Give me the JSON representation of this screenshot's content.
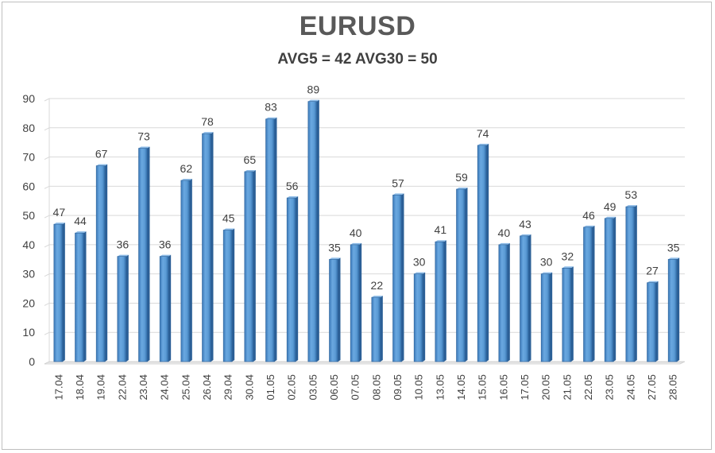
{
  "chart_data": {
    "type": "bar",
    "title": "EURUSD",
    "subtitle": "AVG5 = 42 AVG30 = 50",
    "categories": [
      "17.04",
      "18.04",
      "19.04",
      "22.04",
      "23.04",
      "24.04",
      "25.04",
      "26.04",
      "29.04",
      "30.04",
      "01.05",
      "02.05",
      "03.05",
      "06.05",
      "07.05",
      "08.05",
      "09.05",
      "10.05",
      "13.05",
      "14.05",
      "15.05",
      "16.05",
      "17.05",
      "20.05",
      "21.05",
      "22.05",
      "23.05",
      "24.05",
      "27.05",
      "28.05"
    ],
    "values": [
      47,
      44,
      67,
      36,
      73,
      36,
      62,
      78,
      45,
      65,
      83,
      56,
      89,
      35,
      40,
      22,
      57,
      30,
      41,
      59,
      74,
      40,
      43,
      30,
      32,
      46,
      49,
      53,
      27,
      35
    ],
    "ylim": [
      0,
      90
    ],
    "yticks": [
      0,
      10,
      20,
      30,
      40,
      50,
      60,
      70,
      80,
      90
    ],
    "grid": true,
    "data_labels": true,
    "bar_color": "#5b9bd5",
    "legend": "none"
  }
}
